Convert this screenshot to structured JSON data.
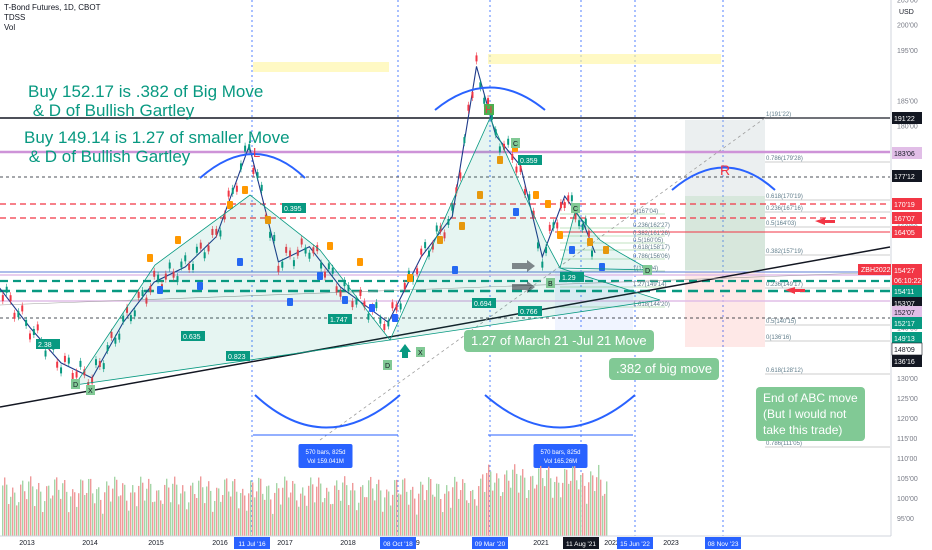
{
  "header": {
    "title": "T-Bond Futures, 1D, CBOT",
    "indicator_1": "TDSS",
    "indicator_2": "Vol"
  },
  "annotations": {
    "buy1_line1": "Buy 152.17 is .382 of Big Move",
    "buy1_line2": " & D of Bullish Gartley",
    "buy2_line1": "Buy 149.14 is 1.27 of smaller Move",
    "buy2_line2": " & D of Bullish Gartley"
  },
  "callouts": {
    "move127": "1.27 of March 21 -Jul 21 Move",
    "move382": ".382 of big move",
    "abc_end": "End of ABC move\n(But I would not\ntake this trade)"
  },
  "pattern_letters": {
    "L": "L",
    "H": "H",
    "R": "R"
  },
  "range_boxes": [
    {
      "bars": "570 bars, 825d",
      "vol": "Vol 159.041M"
    },
    {
      "bars": "570 bars, 825d",
      "vol": "Vol 165.26M"
    }
  ],
  "price_labels": [
    {
      "text": "191'22",
      "bg": "#131722",
      "fg": "#ffffff"
    },
    {
      "text": "183'06",
      "bg": "#e1bee7",
      "fg": "#131722"
    },
    {
      "text": "177'12",
      "bg": "#131722",
      "fg": "#ffffff"
    },
    {
      "text": "170'19",
      "bg": "#f23645",
      "fg": "#ffffff"
    },
    {
      "text": "167'07",
      "bg": "#f23645",
      "fg": "#ffffff"
    },
    {
      "text": "164'05",
      "bg": "#f23645",
      "fg": "#ffffff"
    },
    {
      "text": "154'27",
      "bg": "#f23645",
      "fg": "#ffffff"
    },
    {
      "text": "06:10:22",
      "bg": "#f23645",
      "fg": "#ffffff"
    },
    {
      "text": "154'11",
      "bg": "#089981",
      "fg": "#ffffff"
    },
    {
      "text": "153'07",
      "bg": "#131722",
      "fg": "#ffffff"
    },
    {
      "text": "152'07",
      "bg": "#e1bee7",
      "fg": "#131722"
    },
    {
      "text": "152'17",
      "bg": "#089981",
      "fg": "#ffffff"
    },
    {
      "text": "149'13",
      "bg": "#089981",
      "fg": "#ffffff"
    },
    {
      "text": "148'09",
      "bg": "#ffffff",
      "fg": "#131722"
    },
    {
      "text": "136'16",
      "bg": "#131722",
      "fg": "#ffffff"
    }
  ],
  "symbol_tag": "ZBH2022",
  "currency": "USD",
  "x_highlights": [
    "11 Jul '16",
    "08 Oct '18",
    "09 Mar '20",
    "11 Aug '21",
    "15 Jun '22",
    "08 Nov '23"
  ],
  "fib_left": [
    {
      "text": "1(191'22)"
    },
    {
      "text": "0.786(179'28)"
    },
    {
      "text": "0.618(170'19)"
    },
    {
      "text": "0.236(167'16)"
    },
    {
      "text": "0.5(164'03)"
    },
    {
      "text": "0.382(157'19)"
    },
    {
      "text": "0.236(149'17)"
    },
    {
      "text": "0.5(140'15)"
    },
    {
      "text": "0(136'16)"
    },
    {
      "text": "0.618(128'12)"
    },
    {
      "text": "0.786(111'05)"
    }
  ],
  "fib_small": [
    {
      "text": "0(167'04)"
    },
    {
      "text": "0.236(162'27)"
    },
    {
      "text": "0.382(161'26)"
    },
    {
      "text": "0.5(160'05)"
    },
    {
      "text": "0.618(158'17)"
    },
    {
      "text": "0.786(156'06)"
    },
    {
      "text": "1(153'04)"
    },
    {
      "text": "1.27(149'14)"
    },
    {
      "text": "1.618(144'20)"
    }
  ],
  "wave_labels": {
    "r1": "0.395",
    "r2": "0.359",
    "r3": "1.747",
    "r4": "2.38",
    "r5": "0.635",
    "r6": "0.823",
    "r7": "0.694",
    "r8": "0.766",
    "r9": "1.29"
  },
  "point_labels": {
    "d1": "D",
    "x1": "X",
    "d2": "D",
    "x2": "X",
    "b1": "B",
    "c1": "C",
    "d3": "D",
    "c2": "C"
  },
  "chart_data": {
    "type": "line",
    "symbol": "ZBH2022",
    "ylim": [
      93,
      222
    ],
    "ylabel": "USD",
    "y_ticks": [
      95,
      100,
      105,
      110,
      115,
      120,
      125,
      130,
      135,
      140,
      145,
      150,
      160,
      165,
      175,
      180,
      185,
      195,
      200,
      205,
      210,
      215,
      220
    ],
    "x_ticks": [
      "2013",
      "2014",
      "2015",
      "2016",
      "2017",
      "2018",
      "2019",
      "2021",
      "2022",
      "2023"
    ],
    "x": [
      2012.0,
      2012.5,
      2013.0,
      2013.5,
      2014.0,
      2014.5,
      2015.0,
      2015.5,
      2016.0,
      2016.53,
      2017.0,
      2017.5,
      2018.0,
      2018.77,
      2019.3,
      2019.8,
      2020.19,
      2020.5,
      2020.9,
      2021.25,
      2021.61,
      2021.9,
      2022.1
    ],
    "series": [
      {
        "values": [
          150,
          148,
          140,
          133,
          130,
          141,
          149,
          152,
          158,
          176,
          153,
          156,
          148,
          141,
          154,
          162,
          191.7,
          178,
          172,
          154,
          166,
          161,
          154.8
        ]
      }
    ],
    "levels": [
      191.7,
      183.2,
      177.4,
      170.6,
      167.2,
      164.2,
      154.8,
      154.3,
      153.2,
      152.5,
      149.4,
      148.3,
      136.5
    ]
  }
}
